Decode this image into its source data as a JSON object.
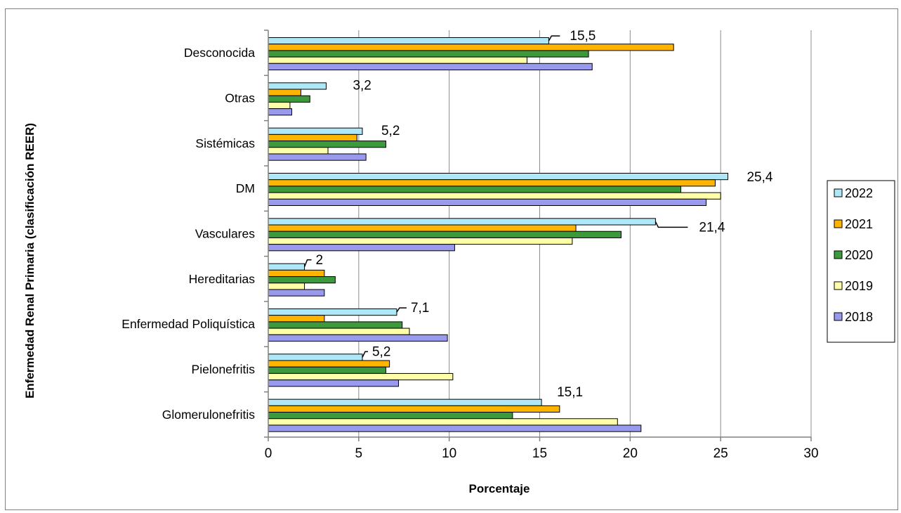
{
  "chart_data": {
    "type": "bar",
    "orientation": "horizontal",
    "title": "",
    "xlabel": "Porcentaje",
    "ylabel": "Enfermedad Renal Primaria (clasificación REER)",
    "xlim": [
      0,
      30
    ],
    "x_ticks": [
      "0",
      "5",
      "10",
      "15",
      "20",
      "25",
      "30"
    ],
    "grid": "vertical",
    "legend_position": "right",
    "categories": [
      "Desconocida",
      "Otras",
      "Sistémicas",
      "DM",
      "Vasculares",
      "Hereditarias",
      "Enfermedad Poliquística",
      "Pielonefritis",
      "Glomerulonefritis"
    ],
    "series": [
      {
        "name": "2022",
        "color": "#aee8f6",
        "values": [
          15.5,
          3.2,
          5.2,
          25.4,
          21.4,
          2.0,
          7.1,
          5.2,
          15.1
        ]
      },
      {
        "name": "2021",
        "color": "#ffb400",
        "values": [
          22.4,
          1.8,
          4.9,
          24.7,
          17.0,
          3.1,
          3.1,
          6.7,
          16.1
        ]
      },
      {
        "name": "2020",
        "color": "#3c9a3c",
        "values": [
          17.7,
          2.3,
          6.5,
          22.8,
          19.5,
          3.7,
          7.4,
          6.5,
          13.5
        ]
      },
      {
        "name": "2019",
        "color": "#ffffa8",
        "values": [
          14.3,
          1.2,
          3.3,
          25.0,
          16.8,
          2.0,
          7.8,
          10.2,
          19.3
        ]
      },
      {
        "name": "2018",
        "color": "#9999ee",
        "values": [
          17.9,
          1.3,
          5.4,
          24.2,
          10.3,
          3.1,
          9.9,
          7.2,
          20.6
        ]
      }
    ],
    "data_labels": {
      "series": "2022",
      "labels": [
        "15,5",
        "3,2",
        "5,2",
        "25,4",
        "21,4",
        "2",
        "7,1",
        "5,2",
        "15,1"
      ]
    }
  }
}
